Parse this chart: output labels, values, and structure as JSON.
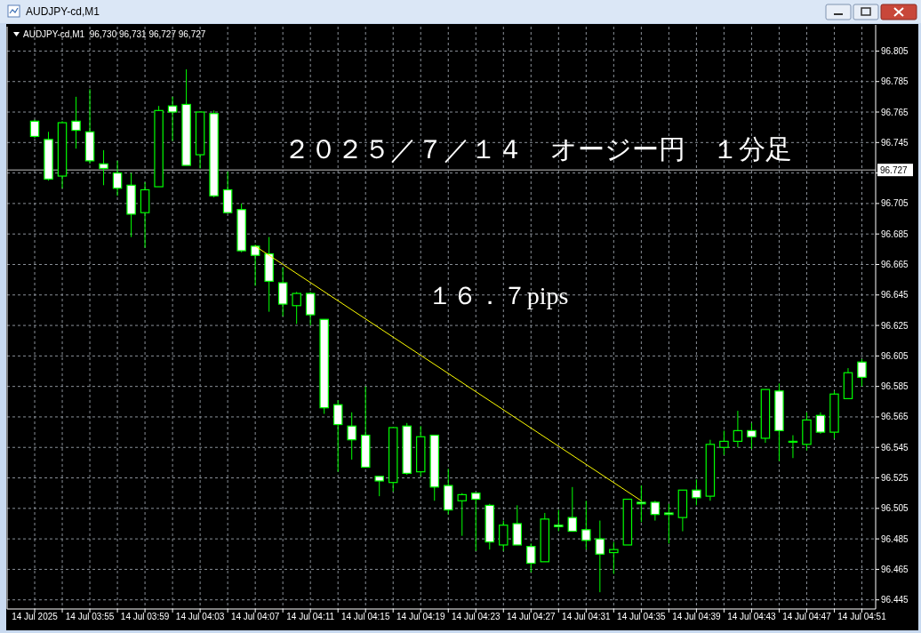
{
  "chart_data": {
    "type": "candlestick",
    "title": "AUDJPY-cd,M1",
    "subtitle": "AUDJPY-cd,M1  96,730 96,731 96,727 96,727",
    "color": "#00ff00",
    "x": [
      "2025-07-14T03:51",
      "2025-07-14T03:52",
      "2025-07-14T03:53",
      "2025-07-14T03:54",
      "2025-07-14T03:55",
      "2025-07-14T03:56",
      "2025-07-14T03:57",
      "2025-07-14T03:58",
      "2025-07-14T03:59",
      "2025-07-14T04:00",
      "2025-07-14T04:01",
      "2025-07-14T04:02",
      "2025-07-14T04:03",
      "2025-07-14T04:04",
      "2025-07-14T04:05",
      "2025-07-14T04:06",
      "2025-07-14T04:07",
      "2025-07-14T04:08",
      "2025-07-14T04:09",
      "2025-07-14T04:10",
      "2025-07-14T04:11",
      "2025-07-14T04:12",
      "2025-07-14T04:13",
      "2025-07-14T04:14",
      "2025-07-14T04:15",
      "2025-07-14T04:16",
      "2025-07-14T04:17",
      "2025-07-14T04:18",
      "2025-07-14T04:19",
      "2025-07-14T04:20",
      "2025-07-14T04:21",
      "2025-07-14T04:22",
      "2025-07-14T04:23",
      "2025-07-14T04:24",
      "2025-07-14T04:25",
      "2025-07-14T04:26",
      "2025-07-14T04:27",
      "2025-07-14T04:28",
      "2025-07-14T04:29",
      "2025-07-14T04:30",
      "2025-07-14T04:31",
      "2025-07-14T04:32",
      "2025-07-14T04:33",
      "2025-07-14T04:34",
      "2025-07-14T04:35",
      "2025-07-14T04:36",
      "2025-07-14T04:37",
      "2025-07-14T04:38",
      "2025-07-14T04:39",
      "2025-07-14T04:40",
      "2025-07-14T04:41",
      "2025-07-14T04:42",
      "2025-07-14T04:43",
      "2025-07-14T04:44",
      "2025-07-14T04:45",
      "2025-07-14T04:46",
      "2025-07-14T04:47",
      "2025-07-14T04:48",
      "2025-07-14T04:49",
      "2025-07-14T04:50",
      "2025-07-14T04:51"
    ],
    "ohlc": [
      [
        96.759,
        96.76,
        96.748,
        96.749
      ],
      [
        96.747,
        96.752,
        96.72,
        96.721
      ],
      [
        96.723,
        96.759,
        96.715,
        96.758
      ],
      [
        96.759,
        96.775,
        96.741,
        96.753
      ],
      [
        96.752,
        96.78,
        96.731,
        96.733
      ],
      [
        96.731,
        96.74,
        96.717,
        96.728
      ],
      [
        96.725,
        96.733,
        96.71,
        96.715
      ],
      [
        96.717,
        96.725,
        96.683,
        96.698
      ],
      [
        96.699,
        96.719,
        96.676,
        96.714
      ],
      [
        96.716,
        96.769,
        96.716,
        96.766
      ],
      [
        96.769,
        96.775,
        96.746,
        96.765
      ],
      [
        96.77,
        96.793,
        96.73,
        96.73
      ],
      [
        96.737,
        96.765,
        96.728,
        96.765
      ],
      [
        96.764,
        96.766,
        96.709,
        96.71
      ],
      [
        96.714,
        96.726,
        96.699,
        96.699
      ],
      [
        96.701,
        96.705,
        96.673,
        96.674
      ],
      [
        96.677,
        96.678,
        96.651,
        96.671
      ],
      [
        96.672,
        96.683,
        96.634,
        96.654
      ],
      [
        96.653,
        96.663,
        96.631,
        96.639
      ],
      [
        96.638,
        96.647,
        96.626,
        96.646
      ],
      [
        96.646,
        96.647,
        96.625,
        96.632
      ],
      [
        96.629,
        96.629,
        96.567,
        96.571
      ],
      [
        96.573,
        96.576,
        96.529,
        96.56
      ],
      [
        96.559,
        96.568,
        96.537,
        96.55
      ],
      [
        96.553,
        96.585,
        96.532,
        96.532
      ],
      [
        96.526,
        96.526,
        96.513,
        96.523
      ],
      [
        96.522,
        96.558,
        96.516,
        96.558
      ],
      [
        96.559,
        96.561,
        96.527,
        96.528
      ],
      [
        96.529,
        96.559,
        96.526,
        96.552
      ],
      [
        96.553,
        96.553,
        96.51,
        96.519
      ],
      [
        96.52,
        96.531,
        96.501,
        96.504
      ],
      [
        96.51,
        96.515,
        96.487,
        96.514
      ],
      [
        96.515,
        96.515,
        96.477,
        96.511
      ],
      [
        96.507,
        96.508,
        96.478,
        96.483
      ],
      [
        96.481,
        96.497,
        96.477,
        96.494
      ],
      [
        96.495,
        96.507,
        96.481,
        96.481
      ],
      [
        96.48,
        96.482,
        96.463,
        96.469
      ],
      [
        96.47,
        96.502,
        96.47,
        96.498
      ],
      [
        96.494,
        96.504,
        96.49,
        96.493
      ],
      [
        96.499,
        96.519,
        96.49,
        96.49
      ],
      [
        96.491,
        96.51,
        96.478,
        96.484
      ],
      [
        96.485,
        96.497,
        96.45,
        96.475
      ],
      [
        96.476,
        96.483,
        96.462,
        96.478
      ],
      [
        96.481,
        96.511,
        96.481,
        96.511
      ],
      [
        96.509,
        96.52,
        96.496,
        96.508
      ],
      [
        96.509,
        96.51,
        96.497,
        96.501
      ],
      [
        96.502,
        96.508,
        96.482,
        96.501
      ],
      [
        96.499,
        96.517,
        96.49,
        96.517
      ],
      [
        96.517,
        96.524,
        96.507,
        96.512
      ],
      [
        96.513,
        96.55,
        96.51,
        96.547
      ],
      [
        96.545,
        96.556,
        96.54,
        96.549
      ],
      [
        96.549,
        96.569,
        96.545,
        96.556
      ],
      [
        96.556,
        96.561,
        96.544,
        96.552
      ],
      [
        96.551,
        96.583,
        96.548,
        96.583
      ],
      [
        96.582,
        96.587,
        96.536,
        96.556
      ],
      [
        96.549,
        96.553,
        96.538,
        96.549
      ],
      [
        96.547,
        96.568,
        96.543,
        96.563
      ],
      [
        96.566,
        96.568,
        96.554,
        96.555
      ],
      [
        96.555,
        96.582,
        96.551,
        96.58
      ],
      [
        96.577,
        96.597,
        96.577,
        96.594
      ],
      [
        96.601,
        96.603,
        96.585,
        96.591
      ]
    ],
    "series": [
      {
        "type": "line",
        "color": "#ffff00",
        "x": [
          "2025-07-14T04:07",
          "2025-07-14T04:35"
        ],
        "values": [
          96.677,
          96.51
        ]
      }
    ],
    "ref_lines": [
      {
        "axis": "y",
        "value": 96.727,
        "label": "96.727",
        "color": "#c0c0c0"
      }
    ],
    "annotations": [
      "２０２５／７／１４　オージー円　１分足",
      "１６．７pips"
    ],
    "xlim": [
      "2025-07-14T03:49",
      "2025-07-14T04:52"
    ],
    "xticks": [
      {
        "value": "2025-07-14T03:51",
        "label": "14 Jul 2025"
      },
      {
        "value": "2025-07-14T03:53",
        "label": null
      },
      {
        "value": "2025-07-14T03:55",
        "label": "14 Jul 03:55"
      },
      {
        "value": "2025-07-14T03:57",
        "label": null
      },
      {
        "value": "2025-07-14T03:59",
        "label": "14 Jul 03:59"
      },
      {
        "value": "2025-07-14T04:01",
        "label": null
      },
      {
        "value": "2025-07-14T04:03",
        "label": "14 Jul 04:03"
      },
      {
        "value": "2025-07-14T04:05",
        "label": null
      },
      {
        "value": "2025-07-14T04:07",
        "label": "14 Jul 04:07"
      },
      {
        "value": "2025-07-14T04:09",
        "label": null
      },
      {
        "value": "2025-07-14T04:11",
        "label": "14 Jul 04:11"
      },
      {
        "value": "2025-07-14T04:13",
        "label": null
      },
      {
        "value": "2025-07-14T04:15",
        "label": "14 Jul 04:15"
      },
      {
        "value": "2025-07-14T04:17",
        "label": null
      },
      {
        "value": "2025-07-14T04:19",
        "label": "14 Jul 04:19"
      },
      {
        "value": "2025-07-14T04:21",
        "label": null
      },
      {
        "value": "2025-07-14T04:23",
        "label": "14 Jul 04:23"
      },
      {
        "value": "2025-07-14T04:25",
        "label": null
      },
      {
        "value": "2025-07-14T04:27",
        "label": "14 Jul 04:27"
      },
      {
        "value": "2025-07-14T04:29",
        "label": null
      },
      {
        "value": "2025-07-14T04:31",
        "label": "14 Jul 04:31"
      },
      {
        "value": "2025-07-14T04:33",
        "label": null
      },
      {
        "value": "2025-07-14T04:35",
        "label": "14 Jul 04:35"
      },
      {
        "value": "2025-07-14T04:37",
        "label": null
      },
      {
        "value": "2025-07-14T04:39",
        "label": "14 Jul 04:39"
      },
      {
        "value": "2025-07-14T04:41",
        "label": null
      },
      {
        "value": "2025-07-14T04:43",
        "label": "14 Jul 04:43"
      },
      {
        "value": "2025-07-14T04:45",
        "label": null
      },
      {
        "value": "2025-07-14T04:47",
        "label": "14 Jul 04:47"
      },
      {
        "value": "2025-07-14T04:49",
        "label": null
      },
      {
        "value": "2025-07-14T04:51",
        "label": "14 Jul 04:51"
      }
    ],
    "ylim": [
      96.439,
      96.821
    ],
    "yticks": [
      96.805,
      96.785,
      96.765,
      96.745,
      {
        "value": 96.725,
        "label": null
      },
      96.705,
      96.685,
      96.665,
      96.645,
      96.625,
      96.605,
      96.585,
      96.565,
      96.545,
      96.525,
      96.505,
      96.485,
      96.465,
      96.445
    ],
    "grid": true
  }
}
